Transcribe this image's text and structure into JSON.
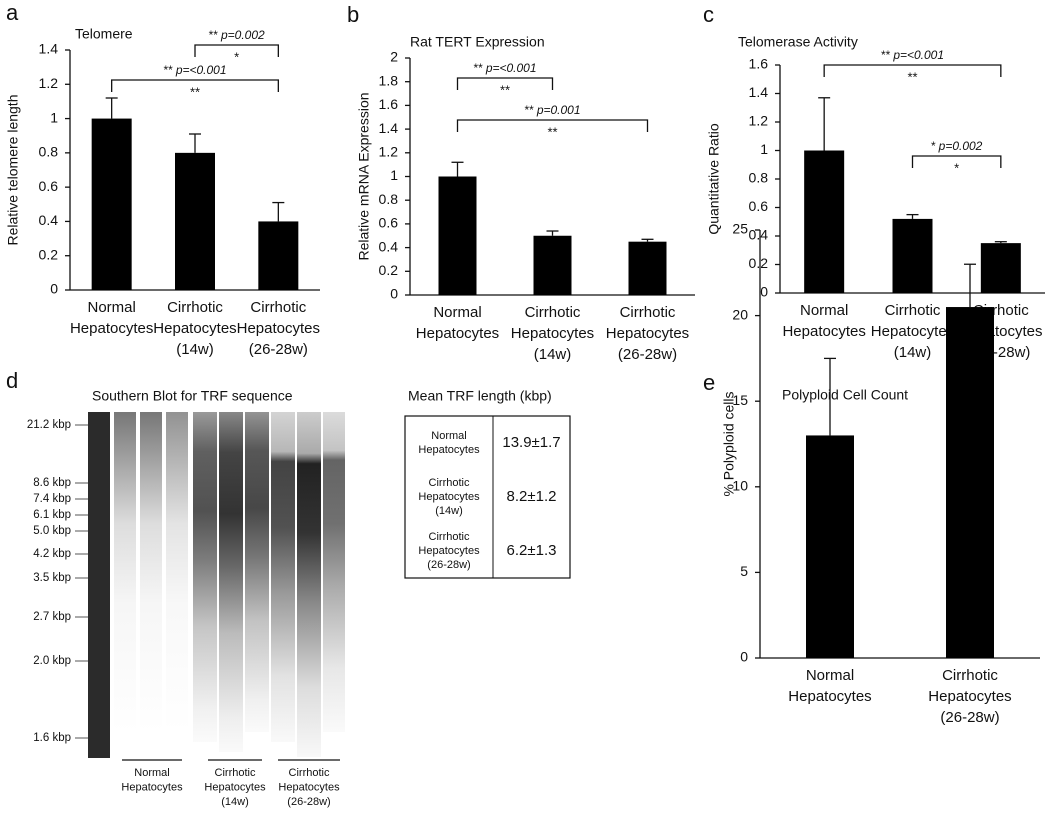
{
  "chart_data": [
    {
      "type": "bar",
      "panel": "a",
      "title": "Telomere",
      "ylabel": "Relative telomere length",
      "categories": [
        [
          "Normal",
          "Hepatocytes"
        ],
        [
          "Cirrhotic",
          "Hepatocytes",
          "(14w)"
        ],
        [
          "Cirrhotic",
          "Hepatocytes",
          "(26-28w)"
        ]
      ],
      "values": [
        1.0,
        0.8,
        0.4
      ],
      "errors": [
        0.12,
        0.11,
        0.11
      ],
      "color": "#000000",
      "ylim": [
        0,
        1.4
      ],
      "yticks": [
        0,
        0.2,
        0.4,
        0.6,
        0.8,
        1,
        1.2,
        1.4
      ],
      "brackets": [
        {
          "between": [
            1,
            2
          ],
          "stars": "**",
          "p": "p=0.002",
          "mark": "*"
        },
        {
          "between": [
            0,
            2
          ],
          "stars": "**",
          "p": "p=<0.001",
          "mark": "**"
        }
      ]
    },
    {
      "type": "bar",
      "panel": "b",
      "title": "Rat TERT Expression",
      "ylabel": "Relative mRNA Expression",
      "categories": [
        [
          "Normal",
          "Hepatocytes"
        ],
        [
          "Cirrhotic",
          "Hepatocytes",
          "(14w)"
        ],
        [
          "Cirrhotic",
          "Hepatocytes",
          "(26-28w)"
        ]
      ],
      "values": [
        1.0,
        0.5,
        0.45
      ],
      "errors": [
        0.12,
        0.04,
        0.02
      ],
      "color": "#000000",
      "ylim": [
        0,
        2
      ],
      "yticks": [
        0,
        0.2,
        0.4,
        0.6,
        0.8,
        1,
        1.2,
        1.4,
        1.6,
        1.8,
        2
      ],
      "brackets": [
        {
          "between": [
            0,
            1
          ],
          "stars": "**",
          "p": "p=<0.001",
          "mark": "**"
        },
        {
          "between": [
            0,
            2
          ],
          "stars": "**",
          "p": "p=0.001",
          "mark": "**"
        }
      ]
    },
    {
      "type": "bar",
      "panel": "c",
      "title": "Telomerase Activity",
      "ylabel": "Quantitative Ratio",
      "categories": [
        [
          "Normal",
          "Hepatocytes"
        ],
        [
          "Cirrhotic",
          "Hepatocytes",
          "(14w)"
        ],
        [
          "Cirrhotic",
          "Hepatocytes",
          "(26-28w)"
        ]
      ],
      "values": [
        1.0,
        0.52,
        0.35
      ],
      "errors": [
        0.37,
        0.03,
        0.01
      ],
      "color": "#000000",
      "ylim": [
        0,
        1.6
      ],
      "yticks": [
        0,
        0.2,
        0.4,
        0.6,
        0.8,
        1,
        1.2,
        1.4,
        1.6
      ],
      "brackets": [
        {
          "between": [
            0,
            2
          ],
          "stars": "**",
          "p": "p=<0.001",
          "mark": "**"
        },
        {
          "between": [
            1,
            2
          ],
          "stars": "*",
          "p": "p=0.002",
          "mark": "*"
        }
      ]
    },
    {
      "type": "bar",
      "panel": "e",
      "title": "Polyploid Cell Count",
      "ylabel": "% Polyploid cells",
      "categories": [
        [
          "Normal",
          "Hepatocytes"
        ],
        [
          "Cirrhotic",
          "Hepatocytes",
          "(26-28w)"
        ]
      ],
      "values": [
        13,
        20.5
      ],
      "errors": [
        4.5,
        2.5
      ],
      "color": "#000000",
      "ylim": [
        0,
        25
      ],
      "yticks": [
        0,
        5,
        10,
        15,
        20,
        25
      ],
      "brackets": []
    }
  ],
  "blot": {
    "panel": "d",
    "title": "Southern Blot for TRF sequence",
    "ladder": [
      "21.2 kbp",
      "8.6 kbp",
      "7.4 kbp",
      "6.1 kbp",
      "5.0 kbp",
      "4.2 kbp",
      "3.5 kbp",
      "2.7 kbp",
      "2.0 kbp",
      "1.6 kbp"
    ],
    "groups": [
      [
        "Normal",
        "Hepatocytes"
      ],
      [
        "Cirrhotic",
        "Hepatocytes",
        "(14w)"
      ],
      [
        "Cirrhotic",
        "Hepatocytes",
        "(26-28w)"
      ]
    ]
  },
  "table": {
    "title": "Mean TRF length (kbp)",
    "rows": [
      [
        [
          "Normal",
          "Hepatocytes"
        ],
        "13.9±1.7"
      ],
      [
        [
          "Cirrhotic",
          "Hepatocytes",
          "(14w)"
        ],
        "8.2±1.2"
      ],
      [
        [
          "Cirrhotic",
          "Hepatocytes",
          "(26-28w)"
        ],
        "6.2±1.3"
      ]
    ]
  }
}
